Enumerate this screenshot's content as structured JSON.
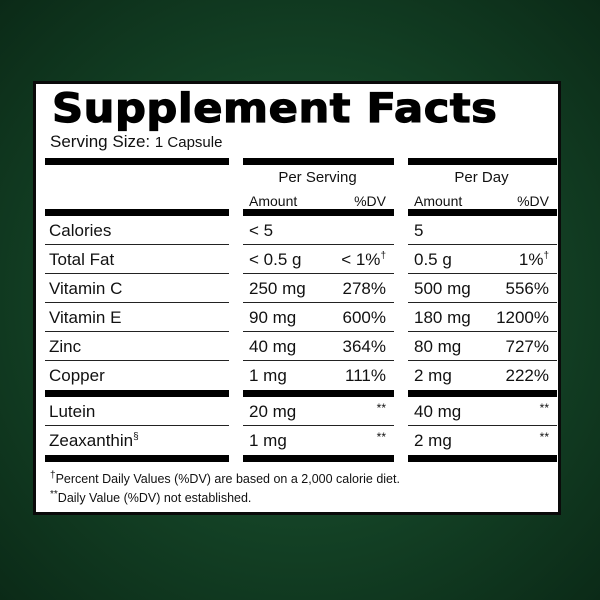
{
  "title": "Supplement Facts",
  "serving_size": {
    "label": "Serving Size:",
    "value": "1 Capsule"
  },
  "columns": {
    "per_serving": {
      "label": "Per Serving",
      "amount": "Amount",
      "dv": "%DV"
    },
    "per_day": {
      "label": "Per Day",
      "amount": "Amount",
      "dv": "%DV"
    }
  },
  "group1": [
    {
      "name": "Calories",
      "serv_amt": "< 5",
      "serv_dv": "",
      "day_amt": "5",
      "day_dv": ""
    },
    {
      "name": "Total Fat",
      "serv_amt": "< 0.5 g",
      "serv_dv": "< 1%",
      "serv_mark": "†",
      "day_amt": "0.5 g",
      "day_dv": "1%",
      "day_mark": "†"
    },
    {
      "name": "Vitamin C",
      "serv_amt": "250 mg",
      "serv_dv": "278%",
      "day_amt": "500 mg",
      "day_dv": "556%"
    },
    {
      "name": "Vitamin E",
      "serv_amt": "90 mg",
      "serv_dv": "600%",
      "day_amt": "180 mg",
      "day_dv": "1200%"
    },
    {
      "name": "Zinc",
      "serv_amt": "40 mg",
      "serv_dv": "364%",
      "day_amt": "80 mg",
      "day_dv": "727%"
    },
    {
      "name": "Copper",
      "serv_amt": "1 mg",
      "serv_dv": "111%",
      "day_amt": "2 mg",
      "day_dv": "222%"
    }
  ],
  "group2": [
    {
      "name": "Lutein",
      "mark": "",
      "serv_amt": "20 mg",
      "serv_dv": "**",
      "day_amt": "40 mg",
      "day_dv": "**"
    },
    {
      "name": "Zeaxanthin",
      "mark": "§",
      "serv_amt": "1 mg",
      "serv_dv": "**",
      "day_amt": "2 mg",
      "day_dv": "**"
    }
  ],
  "footnotes": {
    "dv_mark": "†",
    "dv_text": "Percent Daily Values (%DV) are based on a 2,000 calorie diet.",
    "ne_mark": "**",
    "ne_text": "Daily Value (%DV) not established."
  }
}
